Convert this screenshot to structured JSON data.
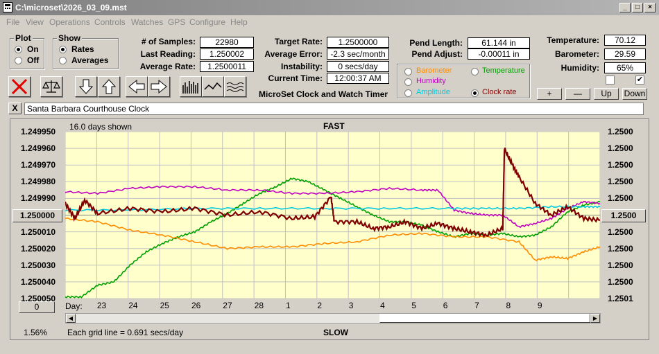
{
  "window": {
    "title": "C:\\microset\\2026_03_09.mst"
  },
  "menu": [
    "File",
    "View",
    "Operations",
    "Controls",
    "Watches",
    "GPS",
    "Configure",
    "Help"
  ],
  "plot_group": {
    "title": "Plot",
    "options": [
      "On",
      "Off"
    ],
    "selected": "On"
  },
  "show_group": {
    "title": "Show",
    "options": [
      "Rates",
      "Averages"
    ],
    "selected": "Rates"
  },
  "stats": {
    "samples_label": "# of Samples:",
    "samples": "22980",
    "last_reading_label": "Last Reading:",
    "last_reading": "1.250002",
    "average_rate_label": "Average Rate:",
    "average_rate": "1.2500011",
    "target_rate_label": "Target Rate:",
    "target_rate": "1.2500000",
    "average_error_label": "Average Error:",
    "average_error": "-2.3 sec/month",
    "instability_label": "Instability:",
    "instability": "0 secs/day",
    "current_time_label": "Current Time:",
    "current_time": "12:00:37 AM",
    "pend_length_label": "Pend Length:",
    "pend_length": "61.144 in",
    "pend_adjust_label": "Pend Adjust:",
    "pend_adjust": "-0.00011 in",
    "temperature_label": "Temperature:",
    "temperature": "70.12",
    "barometer_label": "Barometer:",
    "barometer": "29.59",
    "humidity_label": "Humidity:",
    "humidity": "65%"
  },
  "app_name": "MicroSet Clock and Watch Timer",
  "series_select": {
    "items": [
      {
        "label": "Barometer",
        "color": "#ff8c00",
        "selected": false
      },
      {
        "label": "Temperature",
        "color": "#00a000",
        "selected": false
      },
      {
        "label": "Humidity",
        "color": "#c000c0",
        "selected": false
      },
      {
        "label": "Amplitude",
        "color": "#00c8e0",
        "selected": false
      },
      {
        "label": "Clock rate",
        "color": "#800000",
        "selected": true
      }
    ]
  },
  "adjust_buttons": {
    "plus": "+",
    "minus": "—",
    "up": "Up",
    "down": "Down"
  },
  "checkboxes": [
    {
      "checked": false
    },
    {
      "checked": true
    }
  ],
  "note": {
    "close": "X",
    "text": "Santa Barbara Courthouse Clock"
  },
  "chart_header": {
    "days_shown": "16.0 days shown",
    "top": "FAST",
    "bottom": "SLOW",
    "grid_note": "Each grid line = 0.691 secs/day",
    "percent": "1.56%",
    "center_value": "1.250000",
    "right_center_value": "1.2500",
    "left_bottom_button": "0",
    "day_label": "Day:"
  },
  "colors": {
    "plot_bg": "#ffffcc",
    "grid": "#c0c0c0"
  },
  "chart_data": {
    "type": "line",
    "left_ticks": [
      "1.249950",
      "1.249960",
      "1.249970",
      "1.249980",
      "1.249990",
      "1.250000",
      "1.250010",
      "1.250020",
      "1.250030",
      "1.250040",
      "1.250050"
    ],
    "right_ticks": [
      "1.2500",
      "1.2500",
      "1.2500",
      "1.2500",
      "1.2500",
      "1.2500",
      "1.2500",
      "1.2500",
      "1.2500",
      "1.2500",
      "1.2501"
    ],
    "x_ticks": [
      "23",
      "24",
      "25",
      "26",
      "27",
      "28",
      "1",
      "2",
      "3",
      "4",
      "5",
      "6",
      "7",
      "8",
      "9"
    ],
    "ylim": [
      1.25005,
      1.24995
    ],
    "series": [
      {
        "color": "#00a000",
        "values": [
          [
            0,
            1.250049
          ],
          [
            0.5,
            1.250049
          ],
          [
            1,
            1.250042
          ],
          [
            1.5,
            1.25004
          ],
          [
            2,
            1.25003
          ],
          [
            2.5,
            1.250022
          ],
          [
            3,
            1.250017
          ],
          [
            3.5,
            1.250013
          ],
          [
            4,
            1.25001
          ],
          [
            4.5,
            1.250004
          ],
          [
            5,
            1.249999
          ],
          [
            5.5,
            1.249993
          ],
          [
            6,
            1.249987
          ],
          [
            6.5,
            1.249983
          ],
          [
            7,
            1.249978
          ],
          [
            7.5,
            1.24998
          ],
          [
            8,
            1.249985
          ],
          [
            8.5,
            1.24999
          ],
          [
            9,
            1.249995
          ],
          [
            9.5,
            1.25
          ],
          [
            10,
            1.250004
          ],
          [
            10.5,
            1.250004
          ],
          [
            11,
            1.250006
          ],
          [
            11.5,
            1.25001
          ],
          [
            12,
            1.250013
          ],
          [
            12.5,
            1.250011
          ],
          [
            13,
            1.250012
          ],
          [
            13.5,
            1.250011
          ],
          [
            14,
            1.250013
          ],
          [
            14.5,
            1.250012
          ],
          [
            15,
            1.250007
          ],
          [
            15.5,
            1.249998
          ],
          [
            16,
            1.249994
          ],
          [
            16.5,
            1.249992
          ]
        ]
      },
      {
        "color": "#c000c0",
        "values": [
          [
            0,
            1.249986
          ],
          [
            1,
            1.249987
          ],
          [
            2,
            1.249984
          ],
          [
            3,
            1.249983
          ],
          [
            4,
            1.249983
          ],
          [
            5,
            1.249985
          ],
          [
            6,
            1.249985
          ],
          [
            7,
            1.249987
          ],
          [
            8,
            1.249987
          ],
          [
            9,
            1.249986
          ],
          [
            10,
            1.249984
          ],
          [
            11,
            1.249985
          ],
          [
            11.5,
            1.249985
          ],
          [
            12,
            1.249997
          ],
          [
            12.5,
            1.249999
          ],
          [
            13,
            1.25
          ],
          [
            13.5,
            1.25
          ],
          [
            14,
            1.250007
          ],
          [
            14.5,
            1.250005
          ],
          [
            15,
            1.250002
          ],
          [
            15.5,
            1.249996
          ],
          [
            16,
            1.249992
          ],
          [
            16.5,
            1.249993
          ]
        ]
      },
      {
        "color": "#00c8e0",
        "values": [
          [
            0,
            1.249997
          ],
          [
            2,
            1.249997
          ],
          [
            4,
            1.249996
          ],
          [
            6,
            1.249996
          ],
          [
            8,
            1.249996
          ],
          [
            10,
            1.249996
          ],
          [
            12,
            1.249996
          ],
          [
            13,
            1.249996
          ],
          [
            14,
            1.249996
          ],
          [
            15,
            1.249995
          ],
          [
            16,
            1.249995
          ],
          [
            16.5,
            1.249995
          ]
        ]
      },
      {
        "color": "#ff8c00",
        "values": [
          [
            0,
            1.250002
          ],
          [
            1,
            1.250004
          ],
          [
            2,
            1.250009
          ],
          [
            3,
            1.250012
          ],
          [
            4,
            1.250016
          ],
          [
            5,
            1.25002
          ],
          [
            6,
            1.250019
          ],
          [
            7,
            1.250019
          ],
          [
            8,
            1.250017
          ],
          [
            9,
            1.250016
          ],
          [
            10,
            1.250012
          ],
          [
            11,
            1.250011
          ],
          [
            12,
            1.250013
          ],
          [
            13,
            1.250013
          ],
          [
            14,
            1.250016
          ],
          [
            14.5,
            1.250027
          ],
          [
            15,
            1.250025
          ],
          [
            15.5,
            1.250026
          ],
          [
            16,
            1.250022
          ],
          [
            16.5,
            1.250019
          ]
        ]
      },
      {
        "color": "#800000",
        "values": [
          [
            0,
            1.249993
          ],
          [
            0.3,
            1.250002
          ],
          [
            0.6,
            1.249991
          ],
          [
            1,
            1.249999
          ],
          [
            2,
            1.249996
          ],
          [
            3,
            1.249998
          ],
          [
            4,
            1.249996
          ],
          [
            5,
            1.25
          ],
          [
            6,
            1.249998
          ],
          [
            7,
            1.250002
          ],
          [
            7.7,
            1.250001
          ],
          [
            8.2,
            1.249989
          ],
          [
            8.3,
            1.250004
          ],
          [
            9,
            1.250004
          ],
          [
            9.5,
            1.250008
          ],
          [
            10,
            1.250007
          ],
          [
            10.5,
            1.250004
          ],
          [
            11,
            1.250008
          ],
          [
            11.5,
            1.250005
          ],
          [
            12,
            1.250008
          ],
          [
            12.5,
            1.25001
          ],
          [
            13,
            1.250012
          ],
          [
            13.5,
            1.250008
          ],
          [
            13.55,
            1.24996
          ],
          [
            13.8,
            1.24997
          ],
          [
            14,
            1.249977
          ],
          [
            14.5,
            1.249993
          ],
          [
            15,
            1.25
          ],
          [
            15.5,
            1.249995
          ],
          [
            16,
            1.250002
          ],
          [
            16.5,
            1.250003
          ]
        ]
      }
    ]
  }
}
